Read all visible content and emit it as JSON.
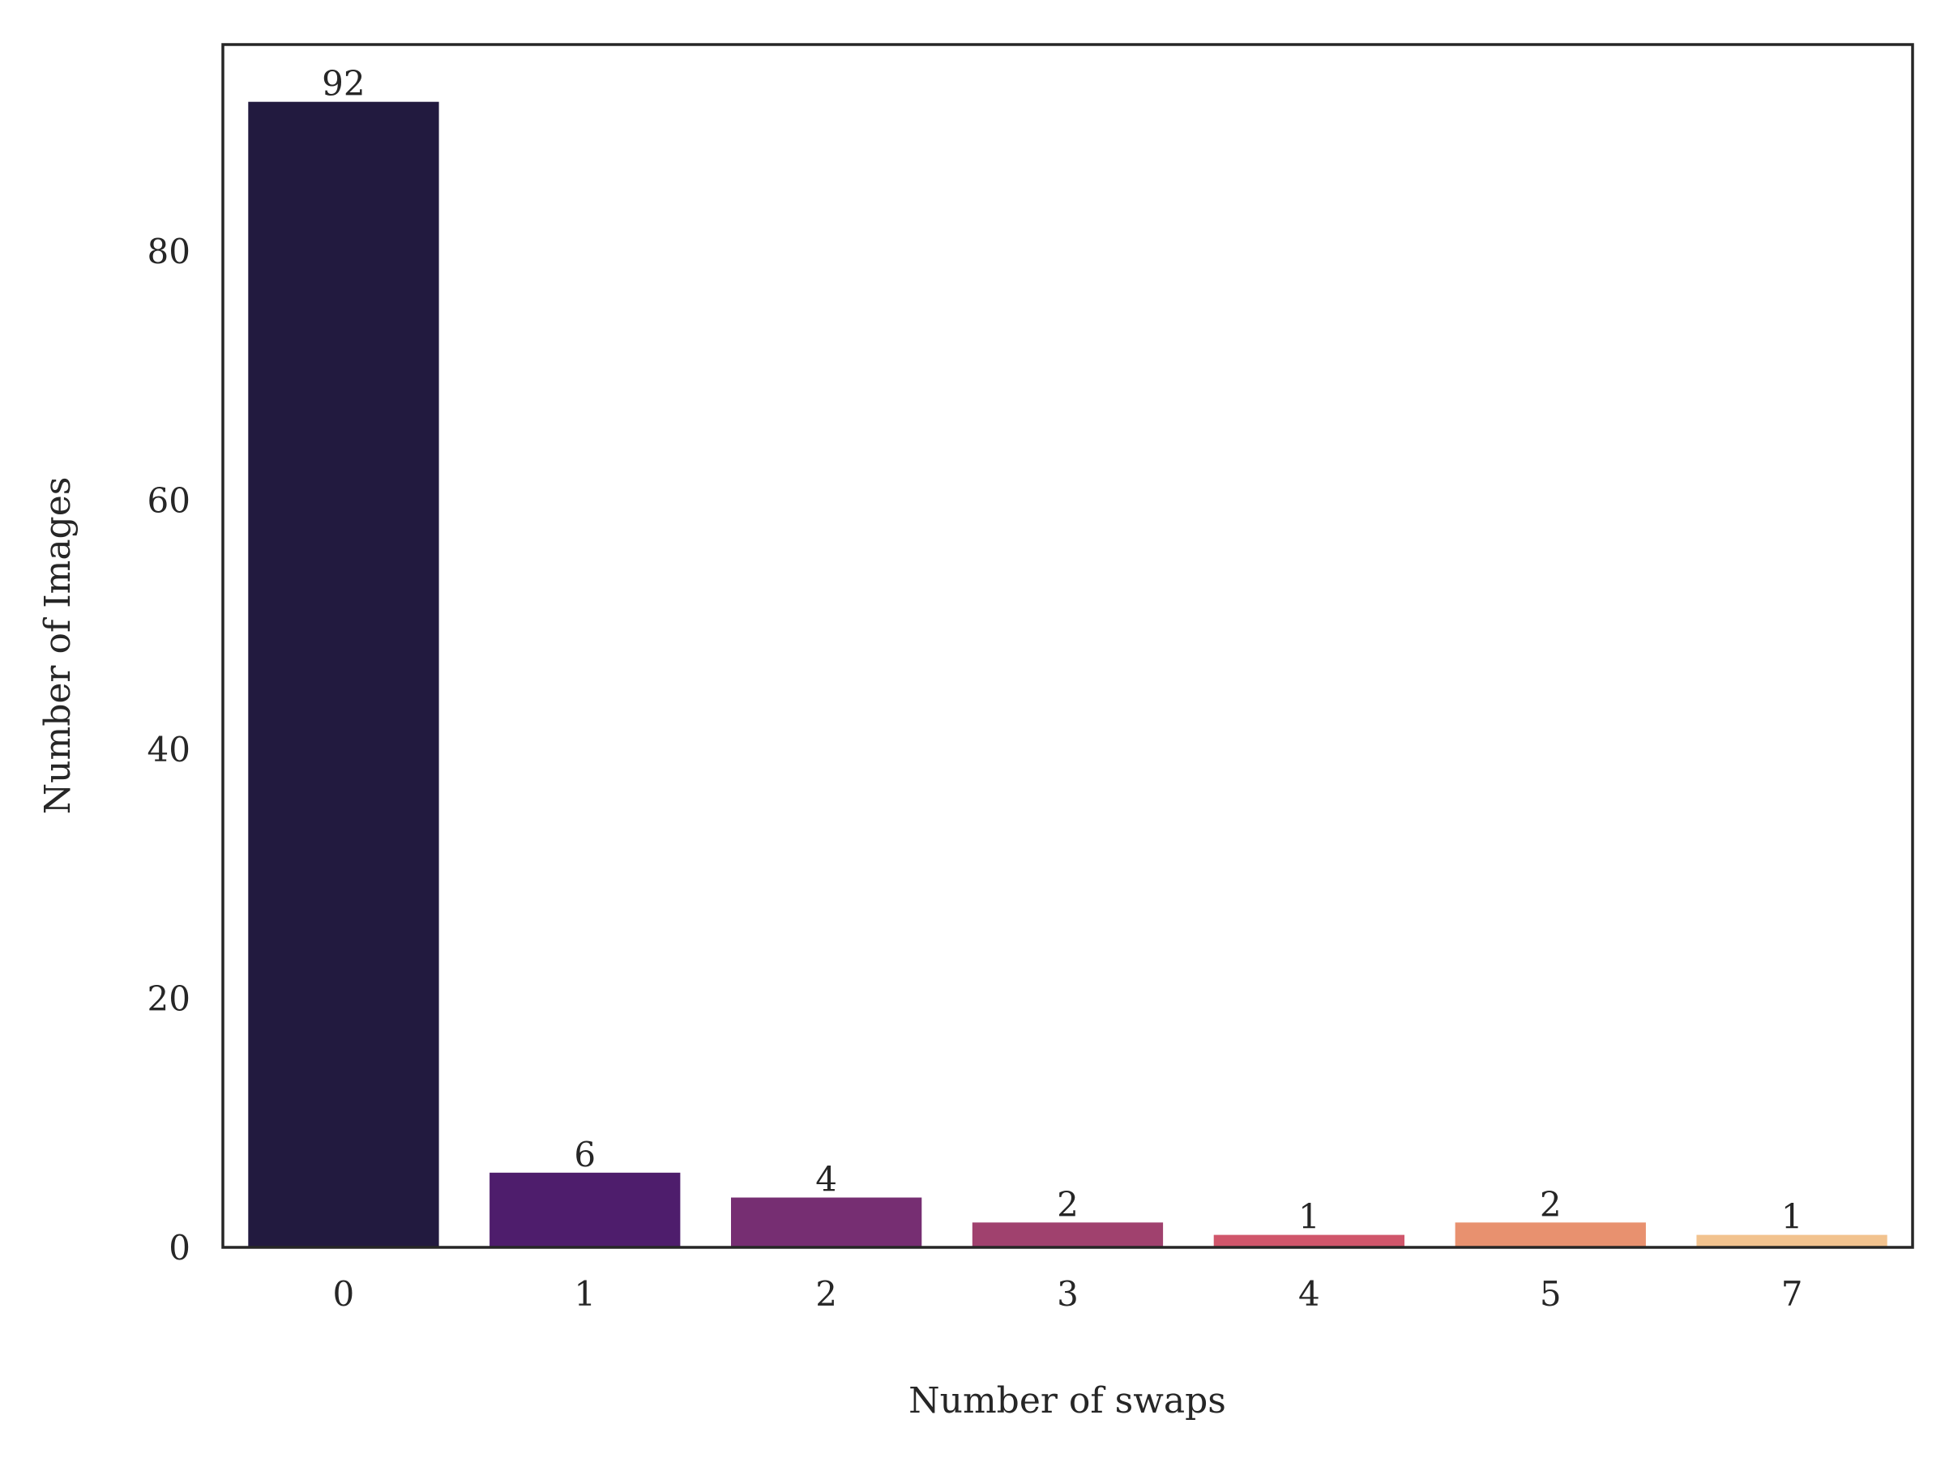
{
  "chart_data": {
    "type": "bar",
    "title": "",
    "xlabel": "Number of swaps",
    "ylabel": "Number of Images",
    "categories": [
      "0",
      "1",
      "2",
      "3",
      "4",
      "5",
      "7"
    ],
    "values": [
      92,
      6,
      4,
      2,
      1,
      2,
      1
    ],
    "bar_colors": [
      "#221a3f",
      "#4e1d6c",
      "#762e72",
      "#a0416e",
      "#d0566b",
      "#e8916f",
      "#f2c38f"
    ],
    "yticks": [
      0,
      20,
      40,
      60,
      80
    ],
    "ylim": [
      0,
      96.6
    ],
    "grid": false,
    "legend": "none",
    "value_labels": true
  }
}
